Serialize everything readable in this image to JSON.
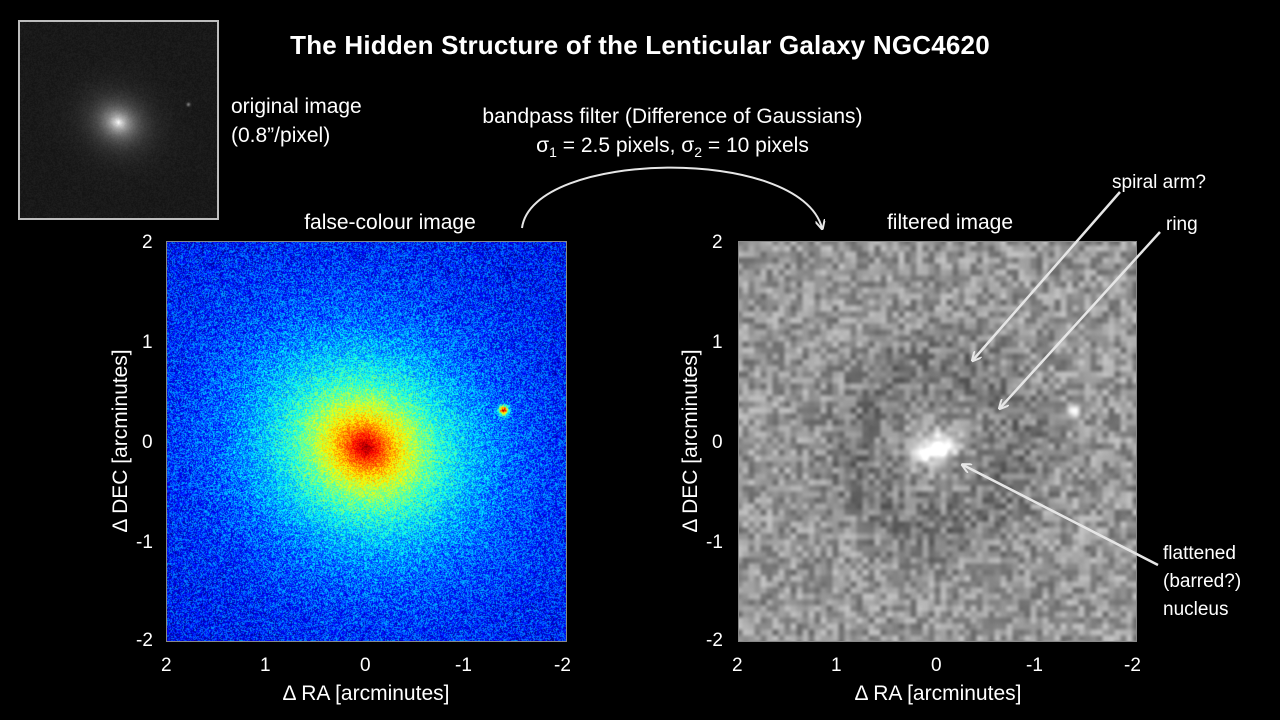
{
  "title": "The Hidden Structure of the Lenticular Galaxy NGC4620",
  "thumbnail": {
    "caption_line1": "original image",
    "caption_line2": "(0.8”/pixel)"
  },
  "filter": {
    "line1": "bandpass filter (Difference of Gaussians)",
    "sigma_symbol": "σ",
    "sub1": "1",
    "sigma1_text": " = 2.5 pixels, ",
    "sub2": "2",
    "sigma2_text": " = 10 pixels"
  },
  "left_panel": {
    "label": "false-colour image",
    "xlabel": "Δ RA [arcminutes]",
    "ylabel": "Δ DEC [arcminutes]",
    "x_ticks": [
      "2",
      "1",
      "0",
      "-1",
      "-2"
    ],
    "y_ticks": [
      "2",
      "1",
      "0",
      "-1",
      "-2"
    ]
  },
  "right_panel": {
    "label": "filtered image",
    "xlabel": "Δ RA [arcminutes]",
    "ylabel": "Δ DEC [arcminutes]",
    "x_ticks": [
      "2",
      "1",
      "0",
      "-1",
      "-2"
    ],
    "y_ticks": [
      "2",
      "1",
      "0",
      "-1",
      "-2"
    ]
  },
  "annotations": {
    "spiral_arm": "spiral arm?",
    "ring": "ring",
    "nucleus_line1": "flattened",
    "nucleus_line2": "(barred?)",
    "nucleus_line3": "nucleus"
  },
  "colors": {
    "background": "#000000",
    "arrow": "#e6e6e6",
    "frame": "#bdbdbd"
  }
}
